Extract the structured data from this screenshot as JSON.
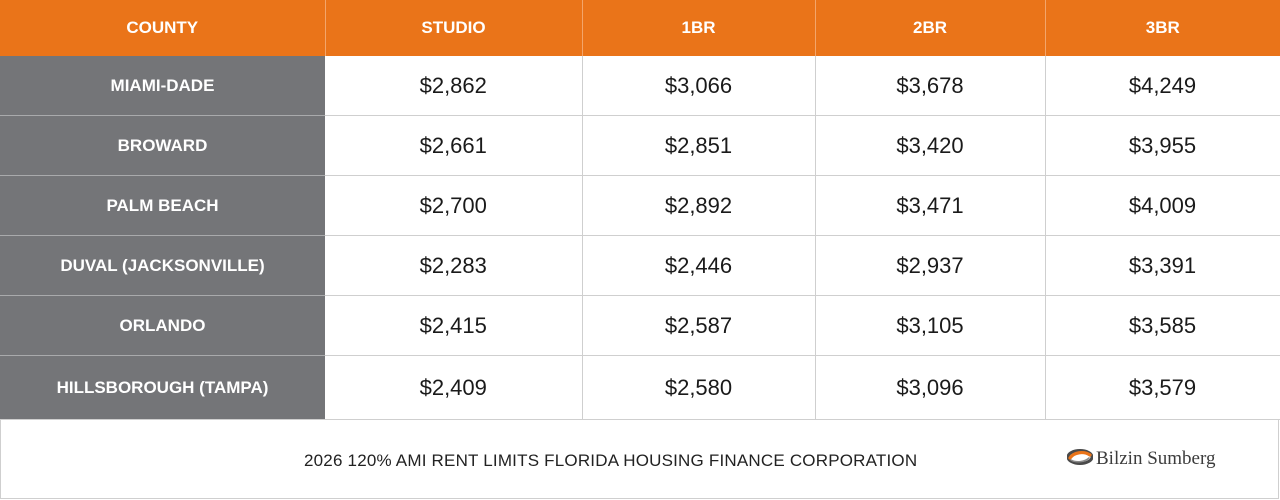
{
  "table": {
    "headers": [
      "COUNTY",
      "STUDIO",
      "1BR",
      "2BR",
      "3BR"
    ],
    "rows": [
      {
        "county": "MIAMI-DADE",
        "studio": "$2,862",
        "br1": "$3,066",
        "br2": "$3,678",
        "br3": "$4,249"
      },
      {
        "county": "BROWARD",
        "studio": "$2,661",
        "br1": "$2,851",
        "br2": "$3,420",
        "br3": "$3,955"
      },
      {
        "county": "PALM BEACH",
        "studio": "$2,700",
        "br1": "$2,892",
        "br2": "$3,471",
        "br3": "$4,009"
      },
      {
        "county": "DUVAL (JACKSONVILLE)",
        "studio": "$2,283",
        "br1": "$2,446",
        "br2": "$2,937",
        "br3": "$3,391"
      },
      {
        "county": "ORLANDO",
        "studio": "$2,415",
        "br1": "$2,587",
        "br2": "$3,105",
        "br3": "$3,585"
      },
      {
        "county": "HILLSBOROUGH (TAMPA)",
        "studio": "$2,409",
        "br1": "$2,580",
        "br2": "$3,096",
        "br3": "$3,579"
      }
    ]
  },
  "footer": {
    "caption": "2026 120% AMI RENT LIMITS FLORIDA HOUSING FINANCE CORPORATION",
    "logo_text": "Bilzin Sumberg",
    "logo_icon": "swirl-logo-icon"
  },
  "colors": {
    "header_bg": "#ea7419",
    "county_bg": "#747578",
    "grid": "#cfcfcf"
  }
}
